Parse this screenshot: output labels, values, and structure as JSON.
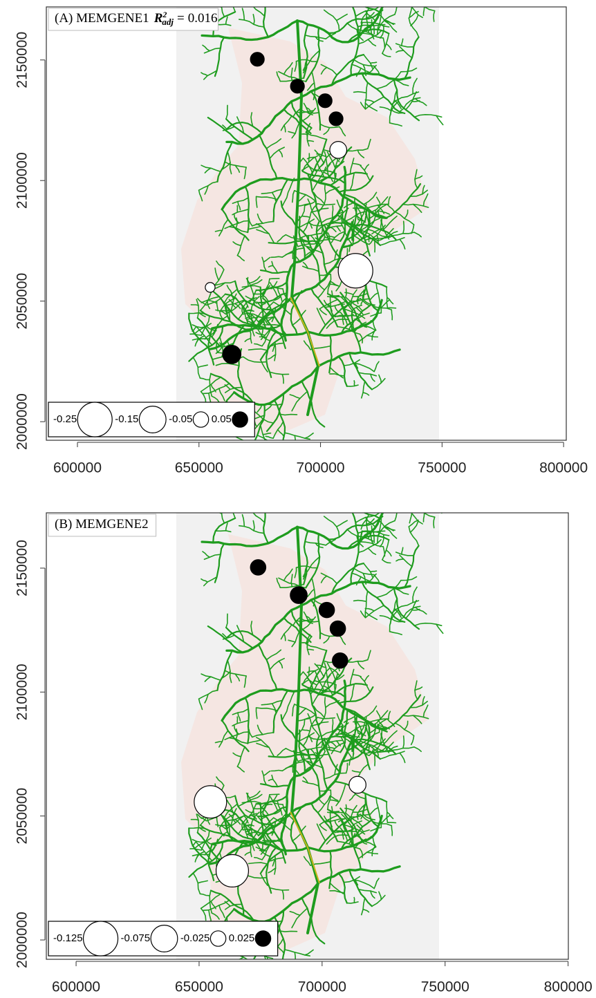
{
  "chart_data": [
    {
      "type": "bubble",
      "title": "(A) MEMGENE1",
      "annotation": {
        "symbol": "R",
        "superscript": "2",
        "subscript": "adj",
        "relation": "=",
        "value": 0.016
      },
      "x": [
        674000,
        690500,
        701900,
        706400,
        707300,
        714400,
        654600,
        663500
      ],
      "y": [
        2150300,
        2139100,
        2133100,
        2125600,
        2112700,
        2062600,
        2055700,
        2027900
      ],
      "values": [
        0.04,
        0.04,
        0.04,
        0.04,
        -0.06,
        -0.25,
        -0.02,
        0.07
      ],
      "legend_values": [
        -0.25,
        -0.15,
        -0.05,
        0.05
      ],
      "positive_color": "#000000",
      "negative_color": "#ffffff",
      "xlim": [
        587200,
        801100
      ],
      "ylim": [
        1992300,
        2172000
      ],
      "xticks": [
        600000,
        650000,
        700000,
        750000,
        800000
      ],
      "yticks": [
        2000000,
        2050000,
        2100000,
        2150000
      ]
    },
    {
      "type": "bubble",
      "title": "(B) MEMGENE2",
      "x": [
        674000,
        690500,
        701900,
        706400,
        707300,
        714400,
        654600,
        663500
      ],
      "y": [
        2150300,
        2139100,
        2133100,
        2125600,
        2112700,
        2062600,
        2055700,
        2027900
      ],
      "values": [
        0.025,
        0.03,
        0.025,
        0.025,
        0.025,
        -0.03,
        -0.11,
        -0.11
      ],
      "legend_values": [
        -0.125,
        -0.075,
        -0.025,
        0.025
      ],
      "positive_color": "#000000",
      "negative_color": "#ffffff",
      "xlim": [
        587900,
        800100
      ],
      "ylim": [
        1992200,
        2172300
      ],
      "xticks": [
        600000,
        650000,
        700000,
        750000,
        800000
      ],
      "yticks": [
        2000000,
        2050000,
        2100000,
        2150000
      ]
    }
  ]
}
